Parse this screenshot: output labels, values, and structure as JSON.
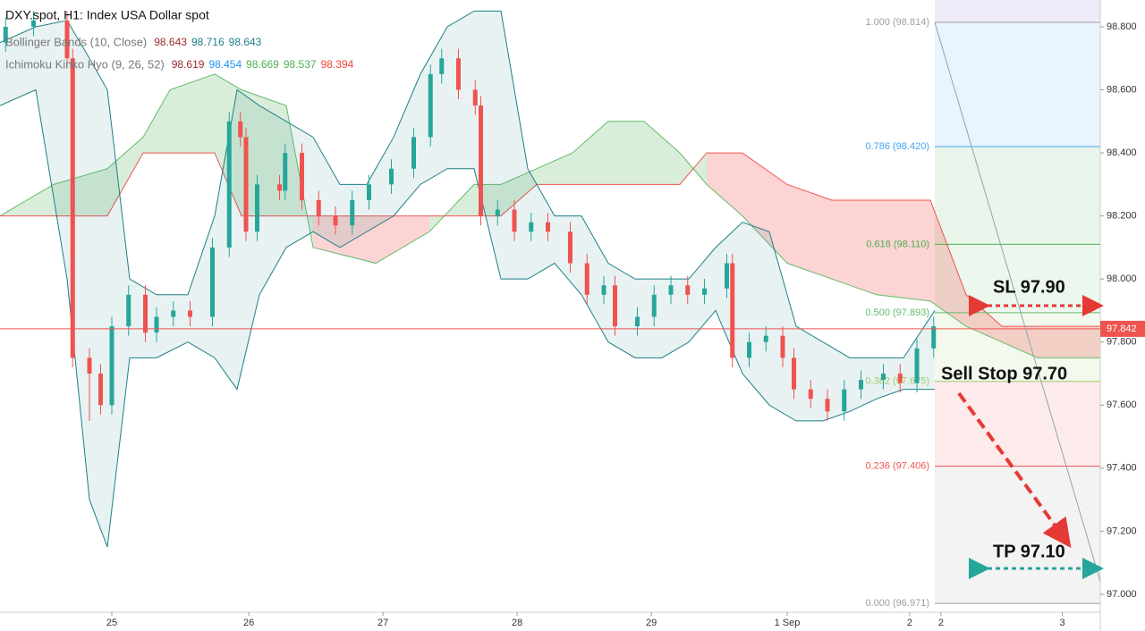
{
  "chart_data": {
    "type": "candlestick",
    "title": "DXY.spot, H1: Index USA Dollar spot",
    "indicators": [
      {
        "name": "Bollinger Bands (10, Close)",
        "values": [
          98.643,
          98.716,
          98.643
        ],
        "colors": [
          "#9c2b2b",
          "#1e7f86",
          "#1e7f86"
        ]
      },
      {
        "name": "Ichimoku Kinko Hyo (9, 26, 52)",
        "values": [
          98.619,
          98.454,
          98.669,
          98.537,
          98.394
        ],
        "colors": [
          "#9c2b2b",
          "#2196f3",
          "#4caf50",
          "#4caf50",
          "#f44336"
        ]
      }
    ],
    "xlim": [
      0,
      196.8
    ],
    "xticks": [
      {
        "value": 20,
        "label": "25"
      },
      {
        "value": 44.5,
        "label": "26"
      },
      {
        "value": 68.5,
        "label": "27"
      },
      {
        "value": 92.5,
        "label": "28"
      },
      {
        "value": 116.5,
        "label": "29"
      },
      {
        "value": 140.8,
        "label": "1 Sep"
      },
      {
        "value": 162.7,
        "label": "2"
      },
      {
        "value": 168.3,
        "label": "2"
      },
      {
        "value": 190,
        "label": "3"
      }
    ],
    "ylim": [
      96.943,
      98.885
    ],
    "yticks": [
      {
        "value": 97.0,
        "label": "97.000"
      },
      {
        "value": 97.2,
        "label": "97.200"
      },
      {
        "value": 97.4,
        "label": "97.400"
      },
      {
        "value": 97.6,
        "label": "97.600"
      },
      {
        "value": 97.8,
        "label": "97.800"
      },
      {
        "value": 98.0,
        "label": "98.000"
      },
      {
        "value": 98.2,
        "label": "98.200"
      },
      {
        "value": 98.4,
        "label": "98.400"
      },
      {
        "value": 98.6,
        "label": "98.600"
      },
      {
        "value": 98.8,
        "label": "98.800"
      }
    ],
    "up_color": "#26a69a",
    "down_color": "#ef5350",
    "candles": {
      "x": [
        1,
        6,
        12,
        13,
        16,
        18,
        20,
        23,
        26,
        28,
        31,
        34,
        38,
        41,
        43,
        44,
        46,
        50,
        51,
        54,
        57,
        60,
        63,
        66,
        70,
        74,
        77,
        79,
        82,
        85,
        86,
        89,
        92,
        95,
        98,
        102,
        105,
        108,
        110,
        114,
        117,
        120,
        123,
        126,
        130,
        131,
        134,
        137,
        140,
        142,
        145,
        148,
        151,
        154,
        158,
        161,
        164,
        167
      ],
      "open": [
        98.75,
        98.8,
        98.82,
        98.7,
        97.75,
        97.7,
        97.6,
        97.85,
        97.95,
        97.83,
        97.88,
        97.9,
        97.88,
        98.1,
        98.5,
        98.45,
        98.15,
        98.3,
        98.28,
        98.4,
        98.25,
        98.2,
        98.17,
        98.25,
        98.3,
        98.35,
        98.45,
        98.65,
        98.7,
        98.6,
        98.55,
        98.2,
        98.22,
        98.15,
        98.18,
        98.15,
        98.05,
        97.95,
        97.98,
        97.85,
        97.88,
        97.95,
        97.98,
        97.95,
        97.97,
        98.05,
        97.75,
        97.8,
        97.82,
        97.75,
        97.65,
        97.62,
        97.58,
        97.65,
        97.68,
        97.7,
        97.67,
        97.78
      ],
      "high": [
        98.83,
        98.85,
        98.85,
        98.73,
        97.78,
        97.73,
        97.88,
        97.98,
        97.98,
        97.91,
        97.93,
        97.93,
        98.13,
        98.53,
        98.53,
        98.48,
        98.33,
        98.33,
        98.43,
        98.43,
        98.28,
        98.23,
        98.28,
        98.33,
        98.38,
        98.48,
        98.68,
        98.73,
        98.73,
        98.63,
        98.58,
        98.25,
        98.25,
        98.21,
        98.21,
        98.18,
        98.08,
        98.01,
        98.01,
        97.91,
        97.98,
        98.01,
        98.01,
        98.0,
        98.08,
        98.08,
        97.83,
        97.85,
        97.85,
        97.78,
        97.68,
        97.65,
        97.68,
        97.71,
        97.73,
        97.73,
        97.81,
        97.88
      ],
      "low": [
        98.72,
        98.77,
        98.67,
        97.72,
        97.55,
        97.57,
        97.57,
        97.82,
        97.8,
        97.8,
        97.85,
        97.85,
        97.85,
        98.07,
        98.42,
        98.12,
        98.12,
        98.25,
        98.25,
        98.22,
        98.17,
        98.14,
        98.14,
        98.22,
        98.27,
        98.32,
        98.42,
        98.62,
        98.57,
        98.52,
        98.17,
        98.17,
        98.12,
        98.12,
        98.12,
        98.02,
        97.92,
        97.92,
        97.82,
        97.82,
        97.85,
        97.92,
        97.92,
        97.92,
        97.94,
        97.72,
        97.72,
        97.77,
        97.72,
        97.62,
        97.59,
        97.55,
        97.55,
        97.62,
        97.65,
        97.64,
        97.64,
        97.75
      ],
      "close": [
        98.8,
        98.82,
        98.7,
        97.75,
        97.7,
        97.6,
        97.85,
        97.95,
        97.83,
        97.88,
        97.9,
        97.88,
        98.1,
        98.5,
        98.45,
        98.15,
        98.3,
        98.28,
        98.4,
        98.25,
        98.2,
        98.17,
        98.25,
        98.3,
        98.35,
        98.45,
        98.65,
        98.7,
        98.6,
        98.55,
        98.2,
        98.22,
        98.15,
        98.18,
        98.15,
        98.05,
        97.95,
        97.98,
        97.85,
        97.88,
        97.95,
        97.98,
        97.95,
        97.97,
        98.05,
        97.75,
        97.8,
        97.82,
        97.75,
        97.65,
        97.62,
        97.58,
        97.65,
        97.68,
        97.7,
        97.67,
        97.78,
        97.85
      ]
    },
    "bollinger": {
      "color": "#1e7f86",
      "x": [
        0,
        6.4,
        12,
        16,
        19.2,
        23.2,
        28,
        33.6,
        38.4,
        42.4,
        46.4,
        51.2,
        56,
        60.8,
        65.6,
        70.4,
        75.2,
        80,
        84.8,
        89.6,
        94.4,
        99.2,
        104,
        108.8,
        113.6,
        118.4,
        123.2,
        128,
        132.8,
        137.6,
        142.4,
        147.2,
        152,
        156.8,
        161.6,
        167.2
      ],
      "upper": [
        98.75,
        98.8,
        98.82,
        98.7,
        98.6,
        98.0,
        97.95,
        97.95,
        98.2,
        98.6,
        98.55,
        98.5,
        98.45,
        98.3,
        98.3,
        98.45,
        98.65,
        98.8,
        98.85,
        98.85,
        98.35,
        98.2,
        98.2,
        98.05,
        98.0,
        98.0,
        98.0,
        98.1,
        98.18,
        98.15,
        97.85,
        97.8,
        97.75,
        97.75,
        97.75,
        97.9
      ],
      "lower": [
        98.55,
        98.6,
        98.0,
        97.3,
        97.15,
        97.75,
        97.75,
        97.8,
        97.75,
        97.65,
        97.95,
        98.1,
        98.15,
        98.1,
        98.15,
        98.2,
        98.3,
        98.35,
        98.35,
        98.0,
        98.0,
        98.05,
        97.95,
        97.8,
        97.75,
        97.75,
        97.8,
        97.9,
        97.7,
        97.6,
        97.55,
        97.55,
        97.58,
        97.62,
        97.65,
        97.65
      ]
    },
    "cloud": {
      "x": [
        0,
        9.6,
        19.2,
        25.6,
        30.4,
        38.4,
        43.2,
        51.2,
        56,
        67.2,
        76.8,
        84.8,
        89.6,
        96,
        102.4,
        108.8,
        115.2,
        121.6,
        126.4,
        132.8,
        140.8,
        148.8,
        156.8,
        166.4,
        172.8,
        179.2,
        185.6,
        196.8
      ],
      "span_a": [
        98.2,
        98.3,
        98.35,
        98.45,
        98.6,
        98.65,
        98.6,
        98.55,
        98.1,
        98.05,
        98.15,
        98.3,
        98.3,
        98.35,
        98.4,
        98.5,
        98.5,
        98.4,
        98.3,
        98.2,
        98.05,
        98.0,
        97.95,
        97.93,
        97.85,
        97.8,
        97.75,
        97.75
      ],
      "span_b": [
        98.2,
        98.2,
        98.2,
        98.4,
        98.4,
        98.4,
        98.2,
        98.2,
        98.2,
        98.2,
        98.2,
        98.2,
        98.2,
        98.3,
        98.3,
        98.3,
        98.3,
        98.3,
        98.4,
        98.4,
        98.3,
        98.25,
        98.25,
        98.25,
        97.95,
        97.85,
        97.85,
        97.85
      ],
      "color_a": "#66bb6a",
      "color_b": "#ef5350"
    },
    "fib_start_x": 167.2,
    "fib_levels": [
      {
        "label": "1.000 (98.814)",
        "value": 98.814,
        "color": "#9e9e9e"
      },
      {
        "label": "0.786 (98.420)",
        "value": 98.42,
        "color": "#42a5f5"
      },
      {
        "label": "0.618 (98.110)",
        "value": 98.11,
        "color": "#4caf50"
      },
      {
        "label": "0.500 (97.893)",
        "value": 97.893,
        "color": "#66bb6a"
      },
      {
        "label": "0.382 (97.675)",
        "value": 97.675,
        "color": "#9ccc65"
      },
      {
        "label": "0.236 (97.406)",
        "value": 97.406,
        "color": "#ef5350"
      },
      {
        "label": "0.000 (96.971)",
        "value": 96.971,
        "color": "#9e9e9e"
      }
    ],
    "current_price": 97.842,
    "current_color": "#ef5350",
    "annotations": [
      {
        "text": "SL 97.90"
      },
      {
        "text": "Sell Stop 97.70"
      },
      {
        "text": "TP 97.10"
      }
    ]
  }
}
